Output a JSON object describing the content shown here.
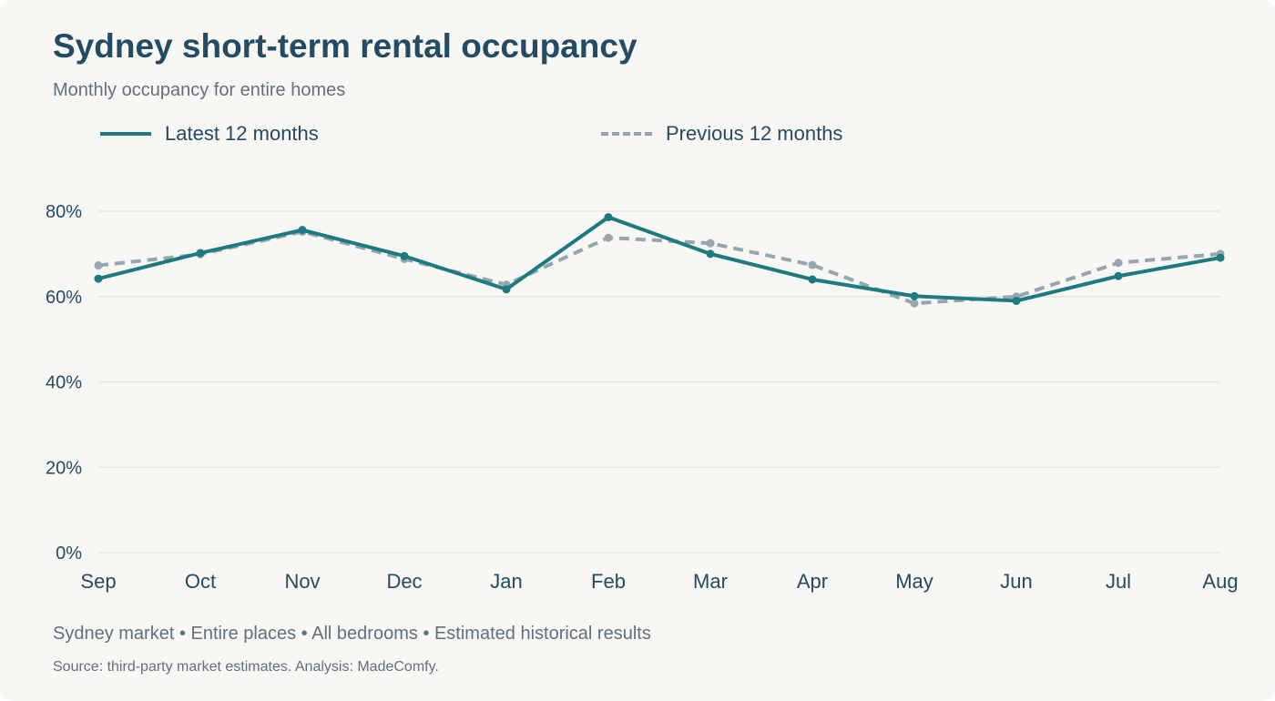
{
  "title": "Sydney short-term rental occupancy",
  "subtitle": "Monthly occupancy for entire homes",
  "footnote": "Sydney market • Entire places • All bedrooms • Estimated historical results",
  "source": "Source: third-party market estimates. Analysis: MadeComfy.",
  "colors": {
    "latest": "#1d7a80",
    "previous": "#96a6b0",
    "text": "#234b63",
    "grid": "#e8e6e2"
  },
  "chart_data": {
    "type": "line",
    "x": [
      "Sep",
      "Oct",
      "Nov",
      "Dec",
      "Jan",
      "Feb",
      "Mar",
      "Apr",
      "May",
      "Jun",
      "Jul",
      "Aug"
    ],
    "y_ticks": [
      0,
      20,
      40,
      60,
      80
    ],
    "y_tick_labels": [
      "0%",
      "20%",
      "40%",
      "60%",
      "80%"
    ],
    "ylim": [
      0,
      80
    ],
    "grid": true,
    "legend_position": "top",
    "series": [
      {
        "name": "Latest 12 months",
        "style": "solid",
        "color": "#1d7a80",
        "values": [
          64.2,
          70.2,
          75.6,
          69.5,
          61.7,
          78.6,
          70.0,
          64.0,
          60.1,
          59.0,
          64.8,
          69.1
        ]
      },
      {
        "name": "Previous 12 months",
        "style": "dashed",
        "color": "#96a6b0",
        "values": [
          67.3,
          69.9,
          75.2,
          68.8,
          62.8,
          73.8,
          72.5,
          67.4,
          58.4,
          60.0,
          67.9,
          70.0
        ]
      }
    ]
  }
}
